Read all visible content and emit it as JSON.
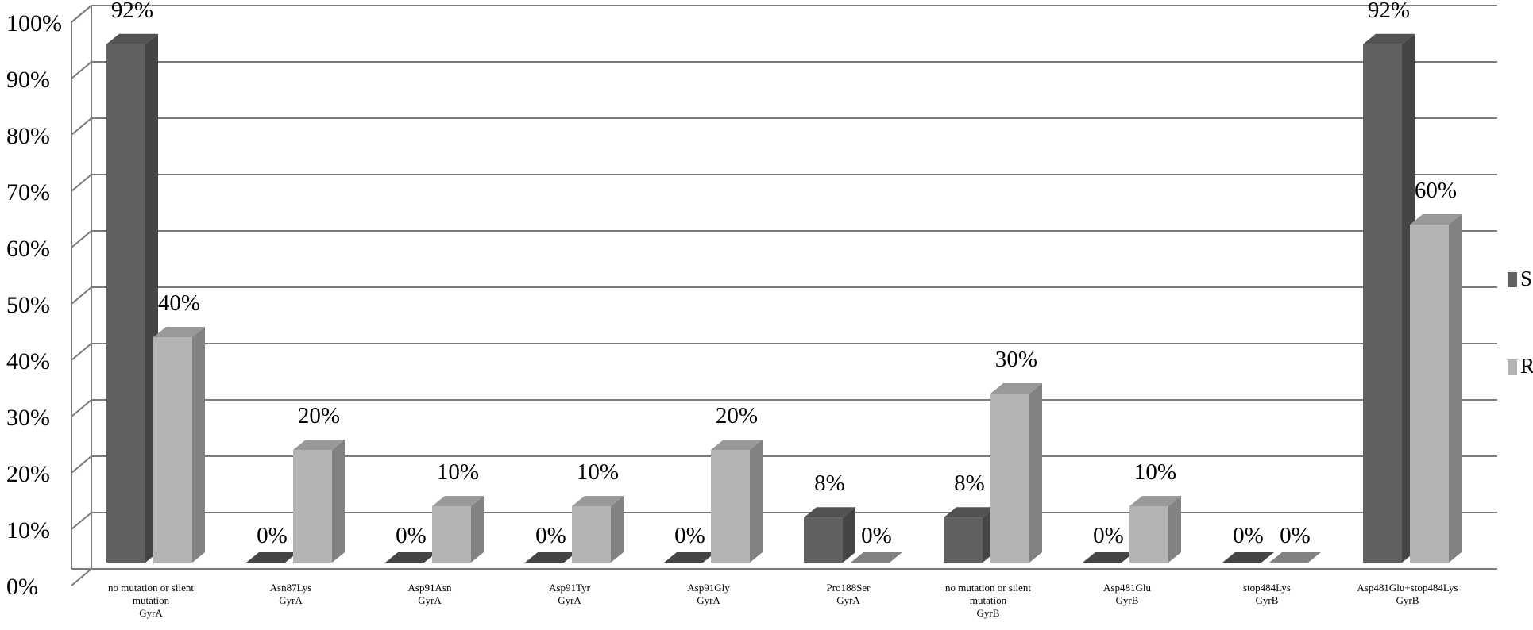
{
  "chart_data": {
    "type": "bar",
    "style": "3d-clustered-column",
    "categories": [
      [
        "no mutation or silent",
        "mutation",
        "GyrA"
      ],
      [
        "Asn87Lys",
        "GyrA"
      ],
      [
        "Asp91Asn",
        "GyrA"
      ],
      [
        "Asp91Tyr",
        "GyrA"
      ],
      [
        "Asp91Gly",
        "GyrA"
      ],
      [
        "Pro188Ser",
        "GyrA"
      ],
      [
        "no mutation or silent",
        "mutation",
        "GyrB"
      ],
      [
        "Asp481Glu",
        "GyrB"
      ],
      [
        "stop484Lys",
        "GyrB"
      ],
      [
        "Asp481Glu+stop484Lys",
        "GyrB"
      ]
    ],
    "series": [
      {
        "name": "S",
        "color": "#606060",
        "values": [
          92,
          0,
          0,
          0,
          0,
          8,
          8,
          0,
          0,
          92
        ],
        "labels": [
          "92%",
          "0%",
          "0%",
          "0%",
          "0%",
          "8%",
          "8%",
          "0%",
          "0%",
          "92%"
        ]
      },
      {
        "name": "R",
        "color": "#b4b4b4",
        "values": [
          40,
          20,
          10,
          10,
          20,
          0,
          30,
          10,
          0,
          60
        ],
        "labels": [
          "40%",
          "20%",
          "10%",
          "10%",
          "20%",
          "0%",
          "30%",
          "10%",
          "0%",
          "60%"
        ]
      }
    ],
    "yticks": [
      "0%",
      "10%",
      "20%",
      "30%",
      "40%",
      "50%",
      "60%",
      "70%",
      "80%",
      "90%",
      "100%"
    ],
    "ylim": [
      0,
      100
    ],
    "grid": true,
    "legend": "right",
    "title": "",
    "xlabel": "",
    "ylabel": ""
  }
}
